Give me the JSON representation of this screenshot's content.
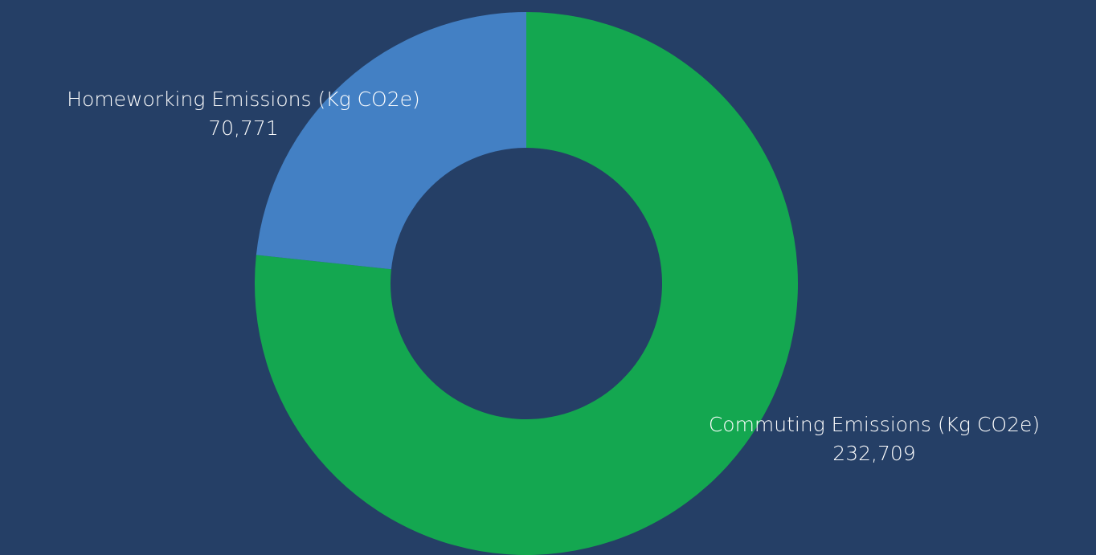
{
  "chart_data": {
    "type": "donut",
    "categories": [
      "Commuting Emissions (Kg CO2e)",
      "Homeworking Emissions (Kg CO2e)"
    ],
    "values": [
      232709,
      70771
    ],
    "value_labels": [
      "232,709",
      "70,771"
    ],
    "colors": [
      "#14a750",
      "#4380c4"
    ]
  }
}
